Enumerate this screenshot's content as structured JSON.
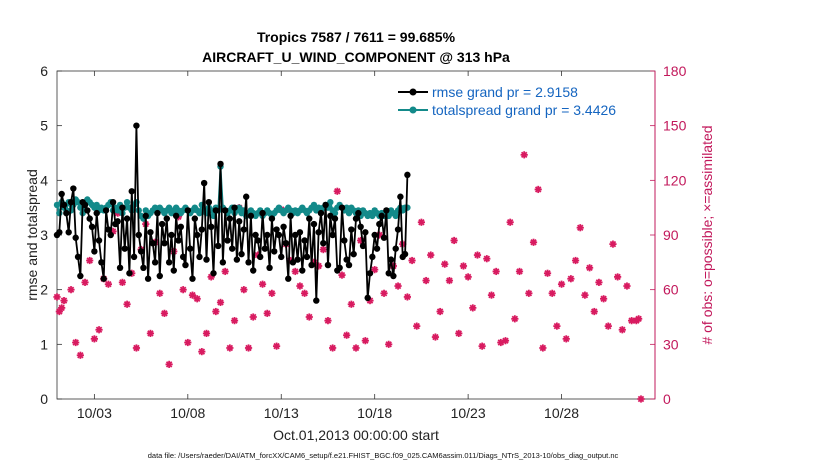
{
  "chart_data": {
    "type": "line",
    "title": "Tropics 7587 / 7611 = 99.685%",
    "subtitle": "AIRCRAFT_U_WIND_COMPONENT @ 313 hPa",
    "xlabel": "Oct.01,2013 00:00:00 start",
    "ylabel_left": "rmse and totalspread",
    "ylabel_right": "# of obs: o=possible; ×=assimilated",
    "ylim_left": [
      0,
      6
    ],
    "ylim_right": [
      0,
      180
    ],
    "xlim": [
      1,
      33
    ],
    "yticks_left": [
      "0",
      "1",
      "2",
      "3",
      "4",
      "5",
      "6"
    ],
    "yticks_right": [
      "0",
      "30",
      "60",
      "90",
      "120",
      "150",
      "180"
    ],
    "xticks": [
      {
        "x": 3,
        "label": "10/03"
      },
      {
        "x": 8,
        "label": "10/08"
      },
      {
        "x": 13,
        "label": "10/13"
      },
      {
        "x": 18,
        "label": "10/18"
      },
      {
        "x": 23,
        "label": "10/23"
      },
      {
        "x": 28,
        "label": "10/28"
      }
    ],
    "colors": {
      "rmse": "#000000",
      "spread": "#138a8a",
      "obs": "#d81b60",
      "right_axis": "#c2185b",
      "legend_text": "#1565c0"
    },
    "series": [
      {
        "name": "rmse grand pr = 2.9158",
        "x_start": 1,
        "x_step": 0.125,
        "values": [
          3.0,
          3.05,
          3.75,
          3.55,
          3.4,
          3.05,
          3.6,
          3.85,
          2.95,
          2.6,
          2.25,
          3.6,
          3.55,
          3.45,
          3.3,
          3.15,
          2.7,
          3.4,
          2.9,
          2.5,
          2.2,
          3.45,
          3.1,
          3.0,
          3.6,
          3.2,
          3.25,
          2.4,
          3.5,
          2.75,
          3.3,
          2.3,
          3.8,
          2.6,
          5.0,
          3.0,
          2.7,
          2.4,
          3.35,
          2.2,
          3.05,
          2.85,
          2.5,
          3.4,
          2.25,
          3.2,
          2.85,
          3.3,
          2.5,
          3.0,
          2.35,
          3.35,
          2.9,
          3.15,
          2.6,
          2.45,
          3.45,
          2.75,
          2.2,
          3.3,
          3.0,
          2.6,
          3.1,
          3.95,
          2.55,
          3.6,
          3.15,
          2.3,
          3.45,
          2.8,
          4.3,
          2.5,
          3.45,
          2.9,
          3.3,
          2.75,
          3.5,
          2.55,
          3.25,
          2.65,
          3.1,
          3.7,
          2.5,
          3.35,
          2.35,
          3.0,
          2.9,
          2.6,
          3.4,
          2.75,
          3.0,
          2.4,
          3.3,
          2.7,
          3.1,
          3.0,
          2.6,
          3.15,
          2.85,
          2.2,
          3.35,
          2.5,
          3.0,
          2.55,
          3.05,
          2.35,
          2.9,
          2.6,
          3.3,
          2.45,
          3.2,
          1.8,
          3.05,
          3.4,
          2.85,
          3.55,
          2.45,
          3.35,
          3.0,
          3.3,
          2.35,
          2.4,
          3.5,
          2.9,
          2.55,
          2.45,
          3.1,
          2.65,
          3.3,
          3.4,
          3.15,
          2.8,
          3.05,
          1.85,
          2.3,
          2.6,
          3.0,
          2.75,
          3.2,
          3.35,
          2.95,
          3.45,
          2.3,
          2.55,
          2.25,
          2.75,
          3.1,
          3.7,
          2.6,
          2.65,
          4.1
        ]
      },
      {
        "name": "totalspread grand pr = 3.4426",
        "x_start": 1,
        "x_step": 0.125,
        "values": [
          3.55,
          3.4,
          3.6,
          3.5,
          3.45,
          3.6,
          3.45,
          3.55,
          3.65,
          3.6,
          3.5,
          3.4,
          3.55,
          3.65,
          3.6,
          3.55,
          3.5,
          3.55,
          3.45,
          3.5,
          3.45,
          3.5,
          3.55,
          3.6,
          3.45,
          3.5,
          3.45,
          3.55,
          3.4,
          3.5,
          3.6,
          3.5,
          3.45,
          3.55,
          3.6,
          3.45,
          3.35,
          3.3,
          3.45,
          3.35,
          3.4,
          3.45,
          3.5,
          3.45,
          3.5,
          3.45,
          3.4,
          3.45,
          3.5,
          3.4,
          3.45,
          3.5,
          3.45,
          3.4,
          3.45,
          3.5,
          3.45,
          3.4,
          3.45,
          3.5,
          3.45,
          3.4,
          3.55,
          3.45,
          3.4,
          3.5,
          3.45,
          3.35,
          3.5,
          3.45,
          4.25,
          3.5,
          3.45,
          3.4,
          3.45,
          3.5,
          3.4,
          3.45,
          3.5,
          3.4,
          3.45,
          3.35,
          3.4,
          3.45,
          3.4,
          3.35,
          3.4,
          3.45,
          3.35,
          3.4,
          3.45,
          3.4,
          3.35,
          3.4,
          3.45,
          3.5,
          3.45,
          3.4,
          3.45,
          3.5,
          3.45,
          3.4,
          3.45,
          3.4,
          3.45,
          3.5,
          3.45,
          3.4,
          3.45,
          3.5,
          3.55,
          3.45,
          3.5,
          3.45,
          3.5,
          3.55,
          3.5,
          3.6,
          3.45,
          3.4,
          3.5,
          3.55,
          3.5,
          3.45,
          3.5,
          3.4,
          3.5,
          3.45,
          3.4,
          3.45,
          3.35,
          3.45,
          3.4,
          3.35,
          3.4,
          3.35,
          3.45,
          3.4,
          3.35,
          3.4,
          3.35,
          3.4,
          3.35,
          3.45,
          3.4,
          3.35,
          3.45,
          3.5,
          3.45,
          3.5,
          3.5
        ]
      }
    ],
    "obs_assimilated": [
      {
        "x": 1.0,
        "y": 56
      },
      {
        "x": 1.125,
        "y": 48
      },
      {
        "x": 1.25,
        "y": 50
      },
      {
        "x": 1.375,
        "y": 54
      },
      {
        "x": 1.75,
        "y": 60
      },
      {
        "x": 2.0,
        "y": 31
      },
      {
        "x": 2.25,
        "y": 24
      },
      {
        "x": 2.5,
        "y": 64
      },
      {
        "x": 2.75,
        "y": 76
      },
      {
        "x": 3.0,
        "y": 33
      },
      {
        "x": 3.25,
        "y": 38
      },
      {
        "x": 3.5,
        "y": 66
      },
      {
        "x": 3.75,
        "y": 63
      },
      {
        "x": 4.0,
        "y": 92
      },
      {
        "x": 4.25,
        "y": 102
      },
      {
        "x": 4.5,
        "y": 64
      },
      {
        "x": 4.75,
        "y": 52
      },
      {
        "x": 5.0,
        "y": 69
      },
      {
        "x": 5.25,
        "y": 28
      },
      {
        "x": 5.5,
        "y": 82
      },
      {
        "x": 5.75,
        "y": 96
      },
      {
        "x": 6.0,
        "y": 36
      },
      {
        "x": 6.25,
        "y": 86
      },
      {
        "x": 6.5,
        "y": 58
      },
      {
        "x": 6.75,
        "y": 47
      },
      {
        "x": 7.0,
        "y": 19
      },
      {
        "x": 7.25,
        "y": 81
      },
      {
        "x": 7.5,
        "y": 100
      },
      {
        "x": 7.75,
        "y": 60
      },
      {
        "x": 8.0,
        "y": 31
      },
      {
        "x": 8.25,
        "y": 57
      },
      {
        "x": 8.5,
        "y": 55
      },
      {
        "x": 8.75,
        "y": 26
      },
      {
        "x": 9.0,
        "y": 36
      },
      {
        "x": 9.25,
        "y": 67
      },
      {
        "x": 9.5,
        "y": 48
      },
      {
        "x": 9.75,
        "y": 53
      },
      {
        "x": 10.0,
        "y": 70
      },
      {
        "x": 10.25,
        "y": 28
      },
      {
        "x": 10.5,
        "y": 43
      },
      {
        "x": 10.75,
        "y": 105
      },
      {
        "x": 11.0,
        "y": 60
      },
      {
        "x": 11.25,
        "y": 28
      },
      {
        "x": 11.5,
        "y": 45
      },
      {
        "x": 11.75,
        "y": 79
      },
      {
        "x": 12.0,
        "y": 63
      },
      {
        "x": 12.25,
        "y": 47
      },
      {
        "x": 12.5,
        "y": 58
      },
      {
        "x": 12.75,
        "y": 29
      },
      {
        "x": 13.0,
        "y": 104
      },
      {
        "x": 13.25,
        "y": 85
      },
      {
        "x": 13.5,
        "y": 76
      },
      {
        "x": 13.75,
        "y": 70
      },
      {
        "x": 14.0,
        "y": 62
      },
      {
        "x": 14.25,
        "y": 58
      },
      {
        "x": 14.5,
        "y": 45
      },
      {
        "x": 14.75,
        "y": 75
      },
      {
        "x": 15.0,
        "y": 73
      },
      {
        "x": 15.25,
        "y": 82
      },
      {
        "x": 15.5,
        "y": 43
      },
      {
        "x": 15.75,
        "y": 28
      },
      {
        "x": 16.0,
        "y": 114
      },
      {
        "x": 16.25,
        "y": 68
      },
      {
        "x": 16.5,
        "y": 35
      },
      {
        "x": 16.75,
        "y": 52
      },
      {
        "x": 17.0,
        "y": 28
      },
      {
        "x": 17.25,
        "y": 87
      },
      {
        "x": 17.5,
        "y": 32
      },
      {
        "x": 17.75,
        "y": 54
      },
      {
        "x": 18.0,
        "y": 71
      },
      {
        "x": 18.25,
        "y": 90
      },
      {
        "x": 18.5,
        "y": 58
      },
      {
        "x": 18.75,
        "y": 30
      },
      {
        "x": 19.0,
        "y": 73
      },
      {
        "x": 19.25,
        "y": 62
      },
      {
        "x": 19.5,
        "y": 85
      },
      {
        "x": 19.75,
        "y": 56
      },
      {
        "x": 20.0,
        "y": 76
      },
      {
        "x": 20.25,
        "y": 40
      },
      {
        "x": 20.5,
        "y": 97
      },
      {
        "x": 20.75,
        "y": 65
      },
      {
        "x": 21.0,
        "y": 79
      },
      {
        "x": 21.25,
        "y": 34
      },
      {
        "x": 21.5,
        "y": 48
      },
      {
        "x": 21.75,
        "y": 74
      },
      {
        "x": 22.0,
        "y": 65
      },
      {
        "x": 22.25,
        "y": 87
      },
      {
        "x": 22.5,
        "y": 36
      },
      {
        "x": 22.75,
        "y": 73
      },
      {
        "x": 23.0,
        "y": 67
      },
      {
        "x": 23.25,
        "y": 50
      },
      {
        "x": 23.5,
        "y": 79
      },
      {
        "x": 23.75,
        "y": 29
      },
      {
        "x": 24.0,
        "y": 77
      },
      {
        "x": 24.25,
        "y": 57
      },
      {
        "x": 24.5,
        "y": 70
      },
      {
        "x": 24.75,
        "y": 31
      },
      {
        "x": 25.0,
        "y": 32
      },
      {
        "x": 25.25,
        "y": 97
      },
      {
        "x": 25.5,
        "y": 44
      },
      {
        "x": 25.75,
        "y": 70
      },
      {
        "x": 26.0,
        "y": 134
      },
      {
        "x": 26.25,
        "y": 58
      },
      {
        "x": 26.5,
        "y": 86
      },
      {
        "x": 26.75,
        "y": 115
      },
      {
        "x": 27.0,
        "y": 28
      },
      {
        "x": 27.25,
        "y": 69
      },
      {
        "x": 27.5,
        "y": 58
      },
      {
        "x": 27.75,
        "y": 40
      },
      {
        "x": 28.0,
        "y": 63
      },
      {
        "x": 28.25,
        "y": 33
      },
      {
        "x": 28.5,
        "y": 66
      },
      {
        "x": 28.75,
        "y": 76
      },
      {
        "x": 29.0,
        "y": 94
      },
      {
        "x": 29.25,
        "y": 57
      },
      {
        "x": 29.5,
        "y": 72
      },
      {
        "x": 29.75,
        "y": 48
      },
      {
        "x": 30.0,
        "y": 64
      },
      {
        "x": 30.25,
        "y": 55
      },
      {
        "x": 30.5,
        "y": 40
      },
      {
        "x": 30.75,
        "y": 85
      },
      {
        "x": 31.0,
        "y": 67
      },
      {
        "x": 31.25,
        "y": 38
      },
      {
        "x": 31.5,
        "y": 62
      },
      {
        "x": 31.75,
        "y": 43
      },
      {
        "x": 32.0,
        "y": 43
      },
      {
        "x": 32.125,
        "y": 44
      },
      {
        "x": 32.25,
        "y": 0
      }
    ]
  },
  "footer": "data file: /Users/raeder/DAI/ATM_forcXX/CAM6_setup/f.e21.FHIST_BGC.f09_025.CAM6assim.011/Diags_NTrS_2013-10/obs_diag_output.nc"
}
